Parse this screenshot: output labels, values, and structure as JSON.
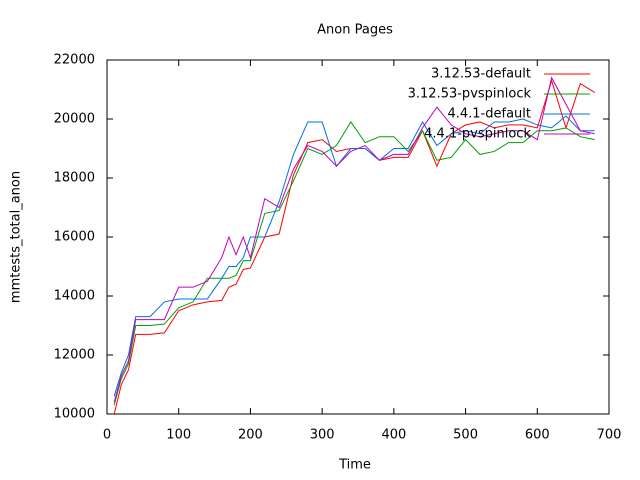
{
  "chart_data": {
    "type": "line",
    "title": "Anon Pages",
    "x_label": "Time",
    "y_label": "mmtests_total_anon",
    "x": [
      10,
      20,
      30,
      40,
      60,
      80,
      100,
      120,
      140,
      160,
      170,
      180,
      190,
      200,
      220,
      240,
      260,
      280,
      300,
      320,
      340,
      360,
      380,
      400,
      420,
      440,
      460,
      480,
      500,
      520,
      540,
      560,
      580,
      600,
      620,
      640,
      660,
      680
    ],
    "series": [
      {
        "name": "3.12.53-default",
        "color": "#ff0000",
        "values": [
          10000,
          11000,
          11500,
          12700,
          12700,
          12750,
          13500,
          13700,
          13800,
          13850,
          14300,
          14400,
          14900,
          14950,
          16000,
          16100,
          18100,
          19200,
          19300,
          18900,
          19000,
          19000,
          18600,
          18700,
          18700,
          19600,
          18400,
          19500,
          19800,
          19900,
          19700,
          19800,
          19800,
          19700,
          21300,
          19700,
          21200,
          20900
        ]
      },
      {
        "name": "3.12.53-pvspinlock",
        "color": "#00a000",
        "values": [
          10300,
          11200,
          11700,
          13000,
          13000,
          13050,
          13600,
          13800,
          14600,
          14600,
          14600,
          14700,
          15200,
          15200,
          16800,
          16900,
          17900,
          19000,
          18800,
          19100,
          19900,
          19200,
          19400,
          19400,
          18900,
          19600,
          18600,
          18700,
          19300,
          18800,
          18900,
          19200,
          19200,
          19600,
          19600,
          19700,
          19400,
          19300
        ]
      },
      {
        "name": "4.4.1-default",
        "color": "#0070e0",
        "values": [
          10600,
          11400,
          12000,
          13300,
          13300,
          13800,
          13900,
          13900,
          13900,
          14600,
          15000,
          15000,
          15300,
          16000,
          16000,
          17200,
          18800,
          19900,
          19900,
          18400,
          19000,
          19000,
          18600,
          19000,
          19000,
          19900,
          19100,
          19500,
          19600,
          19500,
          19900,
          19900,
          20000,
          19800,
          19700,
          20100,
          19600,
          19600
        ]
      },
      {
        "name": "4.4.1-pvspinlock",
        "color": "#c000c0",
        "values": [
          10400,
          11300,
          11800,
          13200,
          13200,
          13200,
          14300,
          14300,
          14500,
          15300,
          16000,
          15400,
          16000,
          15300,
          17300,
          17000,
          18300,
          19100,
          18900,
          18400,
          18900,
          19100,
          18600,
          18800,
          18800,
          19700,
          20400,
          19800,
          19500,
          19400,
          19500,
          19600,
          19600,
          19300,
          21400,
          20500,
          19600,
          19500
        ]
      }
    ],
    "xlim": [
      0,
      700
    ],
    "xticks": [
      0,
      100,
      200,
      300,
      400,
      500,
      600,
      700
    ],
    "ylim": [
      10000,
      22000
    ],
    "yticks": [
      10000,
      12000,
      14000,
      16000,
      18000,
      20000,
      22000
    ],
    "grid": false,
    "legend": "top-right"
  }
}
